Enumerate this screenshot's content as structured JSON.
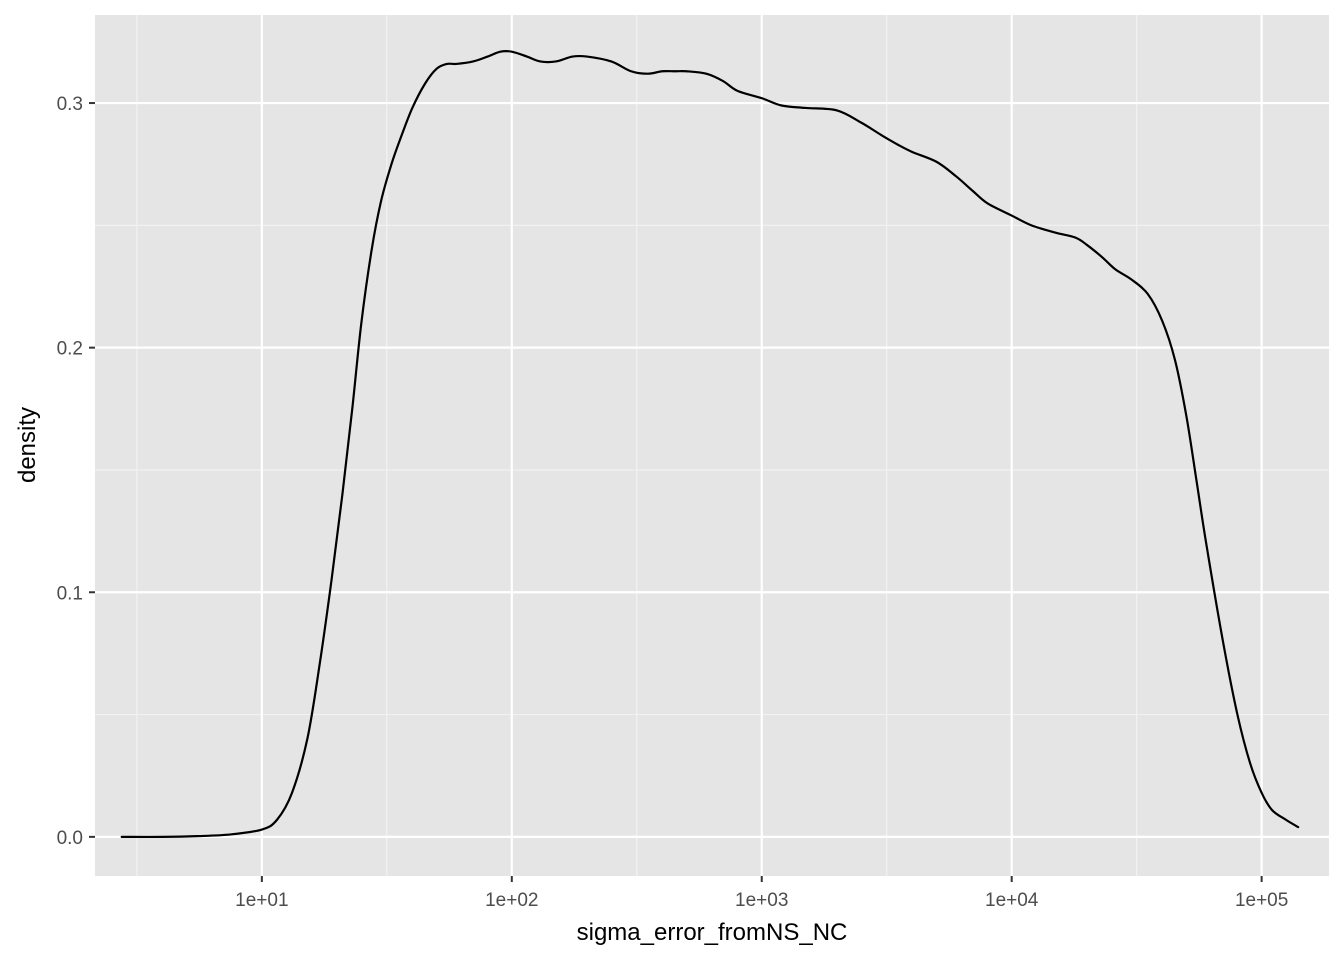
{
  "chart_data": {
    "type": "line",
    "xlabel": "sigma_error_fromNS_NC",
    "ylabel": "density",
    "x_scale": "log10",
    "xlim": [
      2.15,
      186000
    ],
    "ylim": [
      -0.016,
      0.336
    ],
    "x_ticks": [
      {
        "value": 10,
        "label": "1e+01"
      },
      {
        "value": 100,
        "label": "1e+02"
      },
      {
        "value": 1000,
        "label": "1e+03"
      },
      {
        "value": 10000,
        "label": "1e+04"
      },
      {
        "value": 100000,
        "label": "1e+05"
      }
    ],
    "x_minor_ticks": [
      3.162,
      31.62,
      316.2,
      3162,
      31620
    ],
    "y_ticks": [
      {
        "value": 0.0,
        "label": "0.0"
      },
      {
        "value": 0.1,
        "label": "0.1"
      },
      {
        "value": 0.2,
        "label": "0.2"
      },
      {
        "value": 0.3,
        "label": "0.3"
      }
    ],
    "y_minor_ticks": [
      0.05,
      0.15,
      0.25
    ],
    "grid": true,
    "legend": "none",
    "colors": {
      "panel_background": "#E5E5E5",
      "grid_major": "#FFFFFF",
      "grid_minor": "#F2F2F2",
      "line": "#000000",
      "tick_label": "#4D4D4D",
      "axis_title": "#000000"
    },
    "series": [
      {
        "x": [
          2.75,
          4.0,
          5.5,
          7.5,
          10.0,
          11.5,
          13.2,
          15.2,
          17.0,
          19.0,
          21.0,
          23.0,
          25.0,
          27.5,
          30.0,
          33.0,
          36.0,
          40.0,
          45.0,
          50.0,
          55.0,
          60.0,
          70.0,
          80.0,
          90.0,
          100.0,
          115.0,
          130.0,
          150.0,
          175.0,
          200.0,
          250.0,
          300.0,
          350.0,
          400.0,
          450.0,
          500.0,
          600.0,
          700.0,
          800.0,
          1000.0,
          1200.0,
          1500.0,
          2000.0,
          2500.0,
          3000.0,
          3500.0,
          4000.0,
          5000.0,
          6000.0,
          7000.0,
          8000.0,
          10000.0,
          12000.0,
          15000.0,
          18000.0,
          20000.0,
          23000.0,
          26000.0,
          30000.0,
          35000.0,
          40000.0,
          45000.0,
          50000.0,
          55000.0,
          60000.0,
          70000.0,
          80000.0,
          90000.0,
          100000.0,
          110000.0,
          125000.0,
          140000.0
        ],
        "y": [
          0.0,
          0.0,
          0.0003,
          0.001,
          0.003,
          0.007,
          0.018,
          0.04,
          0.07,
          0.105,
          0.14,
          0.175,
          0.21,
          0.24,
          0.26,
          0.275,
          0.286,
          0.298,
          0.308,
          0.314,
          0.316,
          0.316,
          0.317,
          0.319,
          0.321,
          0.321,
          0.319,
          0.317,
          0.317,
          0.319,
          0.319,
          0.317,
          0.313,
          0.312,
          0.313,
          0.313,
          0.313,
          0.312,
          0.309,
          0.305,
          0.302,
          0.299,
          0.298,
          0.297,
          0.292,
          0.287,
          0.283,
          0.28,
          0.276,
          0.27,
          0.264,
          0.259,
          0.254,
          0.25,
          0.247,
          0.245,
          0.242,
          0.237,
          0.232,
          0.228,
          0.222,
          0.211,
          0.195,
          0.172,
          0.145,
          0.12,
          0.08,
          0.05,
          0.03,
          0.018,
          0.011,
          0.007,
          0.004
        ]
      }
    ]
  }
}
